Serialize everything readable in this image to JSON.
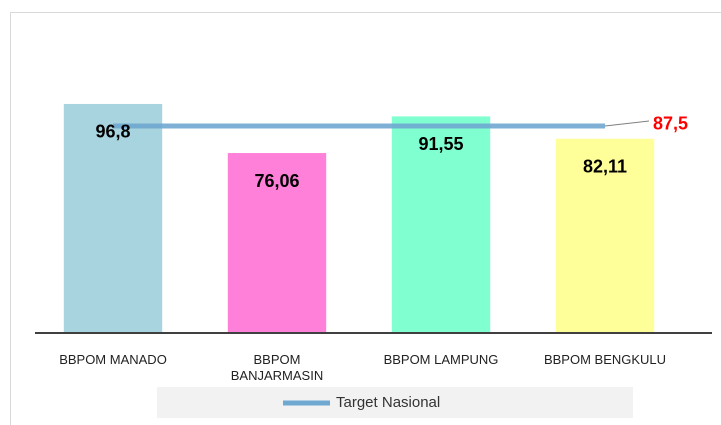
{
  "chart_data": {
    "type": "bar",
    "categories": [
      "BBPOM MANADO",
      "BBPOM BANJARMASIN",
      "BBPOM LAMPUNG",
      "BBPOM BENGKULU"
    ],
    "values": [
      96.8,
      76.06,
      91.55,
      82.11
    ],
    "value_labels": [
      "96,8",
      "76,06",
      "91,55",
      "82,11"
    ],
    "colors": [
      "#a8d4e0",
      "#ff80d9",
      "#80ffd0",
      "#ffff99"
    ],
    "ylim": [
      0,
      100
    ],
    "target": {
      "name": "Target Nasional",
      "value": 87.5,
      "value_label": "87,5",
      "color": "#6fa8d0",
      "label_color": "#ff0000"
    },
    "legend": "bottom"
  }
}
